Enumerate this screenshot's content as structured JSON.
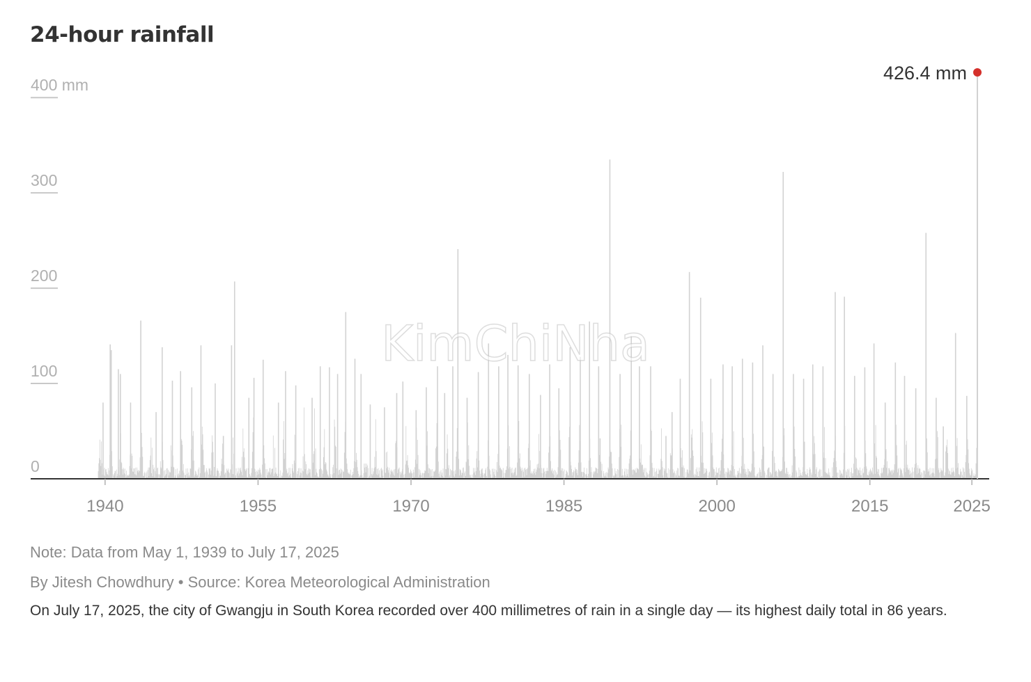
{
  "title": "24-hour rainfall",
  "chart_data": {
    "type": "bar",
    "title": "24-hour rainfall",
    "y_unit_label": "mm",
    "ylim": [
      0,
      440
    ],
    "y_ticks": [
      {
        "value": 0,
        "label": "0"
      },
      {
        "value": 100,
        "label": "100"
      },
      {
        "value": 200,
        "label": "200"
      },
      {
        "value": 300,
        "label": "300"
      },
      {
        "value": 400,
        "label": "400 mm"
      }
    ],
    "x_ticks": [
      {
        "value": 1940,
        "label": "1940"
      },
      {
        "value": 1955,
        "label": "1955"
      },
      {
        "value": 1970,
        "label": "1970"
      },
      {
        "value": 1985,
        "label": "1985"
      },
      {
        "value": 2000,
        "label": "2000"
      },
      {
        "value": 2015,
        "label": "2015"
      },
      {
        "value": 2025,
        "label": "2025"
      }
    ],
    "xlim": [
      1932.7,
      2026.7
    ],
    "data_start": 1939.33,
    "data_end": 2025.54,
    "peaks": [
      {
        "year": 1939.8,
        "value": 80
      },
      {
        "year": 1940.5,
        "value": 141
      },
      {
        "year": 1940.6,
        "value": 135
      },
      {
        "year": 1941.3,
        "value": 115
      },
      {
        "year": 1941.5,
        "value": 110
      },
      {
        "year": 1942.5,
        "value": 80
      },
      {
        "year": 1943.5,
        "value": 166
      },
      {
        "year": 1945.0,
        "value": 70
      },
      {
        "year": 1945.6,
        "value": 138
      },
      {
        "year": 1946.6,
        "value": 103
      },
      {
        "year": 1947.4,
        "value": 113
      },
      {
        "year": 1948.5,
        "value": 96
      },
      {
        "year": 1949.4,
        "value": 140
      },
      {
        "year": 1950.8,
        "value": 100
      },
      {
        "year": 1951.6,
        "value": 45
      },
      {
        "year": 1952.4,
        "value": 140
      },
      {
        "year": 1952.7,
        "value": 207
      },
      {
        "year": 1954.1,
        "value": 85
      },
      {
        "year": 1954.6,
        "value": 106
      },
      {
        "year": 1955.5,
        "value": 125
      },
      {
        "year": 1957.0,
        "value": 80
      },
      {
        "year": 1957.7,
        "value": 113
      },
      {
        "year": 1958.7,
        "value": 98
      },
      {
        "year": 1960.3,
        "value": 85
      },
      {
        "year": 1961.1,
        "value": 118
      },
      {
        "year": 1962.0,
        "value": 117
      },
      {
        "year": 1962.8,
        "value": 110
      },
      {
        "year": 1963.6,
        "value": 175
      },
      {
        "year": 1964.5,
        "value": 126
      },
      {
        "year": 1965.1,
        "value": 110
      },
      {
        "year": 1966.0,
        "value": 78
      },
      {
        "year": 1967.4,
        "value": 75
      },
      {
        "year": 1968.6,
        "value": 90
      },
      {
        "year": 1969.2,
        "value": 102
      },
      {
        "year": 1970.5,
        "value": 72
      },
      {
        "year": 1971.5,
        "value": 96
      },
      {
        "year": 1972.6,
        "value": 118
      },
      {
        "year": 1973.3,
        "value": 90
      },
      {
        "year": 1974.1,
        "value": 118
      },
      {
        "year": 1974.6,
        "value": 241
      },
      {
        "year": 1975.5,
        "value": 85
      },
      {
        "year": 1976.6,
        "value": 112
      },
      {
        "year": 1977.6,
        "value": 142
      },
      {
        "year": 1978.6,
        "value": 118
      },
      {
        "year": 1979.5,
        "value": 130
      },
      {
        "year": 1980.5,
        "value": 119
      },
      {
        "year": 1981.6,
        "value": 110
      },
      {
        "year": 1982.7,
        "value": 88
      },
      {
        "year": 1983.6,
        "value": 120
      },
      {
        "year": 1984.5,
        "value": 95
      },
      {
        "year": 1985.6,
        "value": 138
      },
      {
        "year": 1986.6,
        "value": 128
      },
      {
        "year": 1987.5,
        "value": 165
      },
      {
        "year": 1988.4,
        "value": 118
      },
      {
        "year": 1989.5,
        "value": 335
      },
      {
        "year": 1990.5,
        "value": 110
      },
      {
        "year": 1991.6,
        "value": 150
      },
      {
        "year": 1992.4,
        "value": 118
      },
      {
        "year": 1993.5,
        "value": 118
      },
      {
        "year": 1995.0,
        "value": 45
      },
      {
        "year": 1995.6,
        "value": 70
      },
      {
        "year": 1996.4,
        "value": 105
      },
      {
        "year": 1997.3,
        "value": 217
      },
      {
        "year": 1998.4,
        "value": 190
      },
      {
        "year": 1999.4,
        "value": 105
      },
      {
        "year": 2000.6,
        "value": 120
      },
      {
        "year": 2001.5,
        "value": 118
      },
      {
        "year": 2002.5,
        "value": 126
      },
      {
        "year": 2003.5,
        "value": 122
      },
      {
        "year": 2004.5,
        "value": 140
      },
      {
        "year": 2005.5,
        "value": 110
      },
      {
        "year": 2006.5,
        "value": 322
      },
      {
        "year": 2007.5,
        "value": 110
      },
      {
        "year": 2008.5,
        "value": 105
      },
      {
        "year": 2009.4,
        "value": 120
      },
      {
        "year": 2010.4,
        "value": 118
      },
      {
        "year": 2011.6,
        "value": 196
      },
      {
        "year": 2012.5,
        "value": 191
      },
      {
        "year": 2013.5,
        "value": 108
      },
      {
        "year": 2014.5,
        "value": 117
      },
      {
        "year": 2015.4,
        "value": 142
      },
      {
        "year": 2016.5,
        "value": 80
      },
      {
        "year": 2017.5,
        "value": 122
      },
      {
        "year": 2018.4,
        "value": 108
      },
      {
        "year": 2019.5,
        "value": 95
      },
      {
        "year": 2020.5,
        "value": 258
      },
      {
        "year": 2021.5,
        "value": 85
      },
      {
        "year": 2022.2,
        "value": 55
      },
      {
        "year": 2023.4,
        "value": 153
      },
      {
        "year": 2024.5,
        "value": 87
      }
    ],
    "highlight": {
      "year": 2025.54,
      "value": 426.4,
      "label": "426.4 mm"
    },
    "bar_color": "#d2d2d2",
    "highlight_color": "#d4302b",
    "axis_color": "#333333",
    "tick_label_color": "#8a8a8a",
    "grid": false
  },
  "note": "Note: Data from May 1, 1939 to July 17, 2025",
  "byline": "By Jitesh Chowdhury",
  "source": "Source: Korea Meteorological Administration",
  "separator": "•",
  "description": "On July 17, 2025, the city of Gwangju in South Korea recorded over 400 millimetres of rain in a single day — its highest daily total in 86 years.",
  "watermark": "KimChiNha"
}
